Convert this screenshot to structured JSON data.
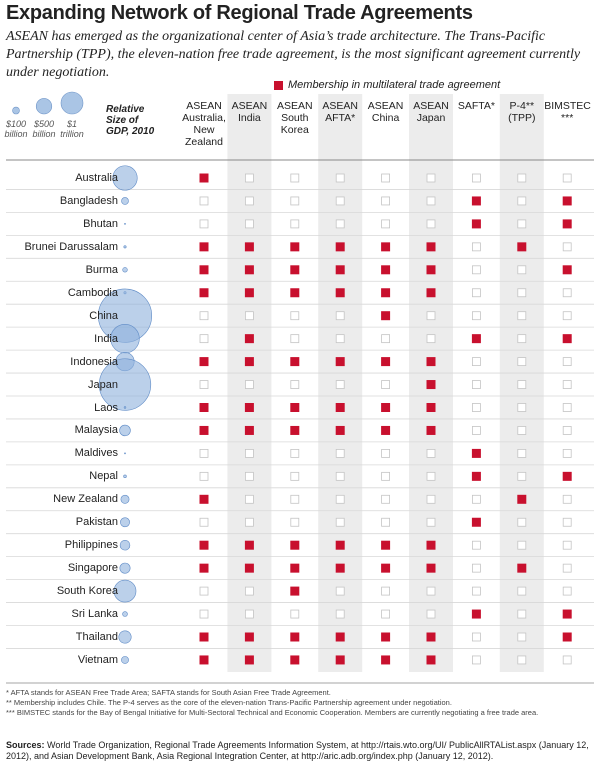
{
  "header": {
    "title": "Expanding Network of Regional Trade Agreements",
    "subtitle": "ASEAN has emerged as the organizational center of Asia’s trade architecture. The Trans-Pacific Partnership (TPP), the eleven-nation free trade agreement, is the most significant agreement currently under negotiation."
  },
  "legend": {
    "membership": "Membership in multilateral trade agreement",
    "member_color": "#c8102e",
    "empty_color": "#c4c4c4"
  },
  "size_legend": {
    "title": "Relative Size of GDP, 2010",
    "sizes": [
      {
        "value": 100,
        "label": "$100 billion"
      },
      {
        "value": 500,
        "label": "$500 billion"
      },
      {
        "value": 1000,
        "label": "$1 trillion"
      }
    ],
    "color": "#8eb1dc"
  },
  "table": {
    "columns": [
      "ASEAN Australia, New Zealand",
      "ASEAN India",
      "ASEAN South Korea",
      "ASEAN AFTA*",
      "ASEAN China",
      "ASEAN Japan",
      "SAFTA*",
      "P-4** (TPP)",
      "BIMSTEC ***"
    ],
    "shaded_columns": [
      1,
      3,
      5,
      7
    ],
    "rows": [
      {
        "country": "Australia",
        "gdp": 1240,
        "members": [
          1,
          0,
          0,
          0,
          0,
          0,
          0,
          0,
          0
        ]
      },
      {
        "country": "Bangladesh",
        "gdp": 100,
        "members": [
          0,
          0,
          0,
          0,
          0,
          0,
          1,
          0,
          1
        ]
      },
      {
        "country": "Bhutan",
        "gdp": 1.5,
        "members": [
          0,
          0,
          0,
          0,
          0,
          0,
          1,
          0,
          1
        ]
      },
      {
        "country": "Brunei Darussalam",
        "gdp": 12,
        "members": [
          1,
          1,
          1,
          1,
          1,
          1,
          0,
          1,
          0
        ]
      },
      {
        "country": "Burma",
        "gdp": 45,
        "members": [
          1,
          1,
          1,
          1,
          1,
          1,
          0,
          0,
          1
        ]
      },
      {
        "country": "Cambodia",
        "gdp": 11,
        "members": [
          1,
          1,
          1,
          1,
          1,
          1,
          0,
          0,
          0
        ]
      },
      {
        "country": "China",
        "gdp": 5900,
        "members": [
          0,
          0,
          0,
          0,
          1,
          0,
          0,
          0,
          0
        ]
      },
      {
        "country": "India",
        "gdp": 1700,
        "members": [
          0,
          1,
          0,
          0,
          0,
          0,
          1,
          0,
          1
        ]
      },
      {
        "country": "Indonesia",
        "gdp": 700,
        "members": [
          1,
          1,
          1,
          1,
          1,
          1,
          0,
          0,
          0
        ]
      },
      {
        "country": "Japan",
        "gdp": 5500,
        "members": [
          0,
          0,
          0,
          0,
          0,
          1,
          0,
          0,
          0
        ]
      },
      {
        "country": "Laos",
        "gdp": 7,
        "members": [
          1,
          1,
          1,
          1,
          1,
          1,
          0,
          0,
          0
        ]
      },
      {
        "country": "Malaysia",
        "gdp": 240,
        "members": [
          1,
          1,
          1,
          1,
          1,
          1,
          0,
          0,
          0
        ]
      },
      {
        "country": "Maldives",
        "gdp": 2,
        "members": [
          0,
          0,
          0,
          0,
          0,
          0,
          1,
          0,
          0
        ]
      },
      {
        "country": "Nepal",
        "gdp": 16,
        "members": [
          0,
          0,
          0,
          0,
          0,
          0,
          1,
          0,
          1
        ]
      },
      {
        "country": "New Zealand",
        "gdp": 140,
        "members": [
          1,
          0,
          0,
          0,
          0,
          0,
          0,
          1,
          0
        ]
      },
      {
        "country": "Pakistan",
        "gdp": 175,
        "members": [
          0,
          0,
          0,
          0,
          0,
          0,
          1,
          0,
          0
        ]
      },
      {
        "country": "Philippines",
        "gdp": 200,
        "members": [
          1,
          1,
          1,
          1,
          1,
          1,
          0,
          0,
          0
        ]
      },
      {
        "country": "Singapore",
        "gdp": 220,
        "members": [
          1,
          1,
          1,
          1,
          1,
          1,
          0,
          1,
          0
        ]
      },
      {
        "country": "South Korea",
        "gdp": 1000,
        "members": [
          0,
          0,
          1,
          0,
          0,
          0,
          0,
          0,
          0
        ]
      },
      {
        "country": "Sri Lanka",
        "gdp": 50,
        "members": [
          0,
          0,
          0,
          0,
          0,
          0,
          1,
          0,
          1
        ]
      },
      {
        "country": "Thailand",
        "gdp": 320,
        "members": [
          1,
          1,
          1,
          1,
          1,
          1,
          0,
          0,
          1
        ]
      },
      {
        "country": "Vietnam",
        "gdp": 105,
        "members": [
          1,
          1,
          1,
          1,
          1,
          1,
          0,
          0,
          0
        ]
      }
    ]
  },
  "footnotes": [
    "* AFTA stands for ASEAN Free Trade Area; SAFTA stands for South Asian Free Trade Agreement.",
    "** Membership includes Chile. The P-4 serves as the core of the eleven-nation Trans-Pacific Partnership agreement under negotiation.",
    "*** BIMSTEC stands for the Bay of Bengal Initiative for Multi-Sectoral Technical and Economic Cooperation. Members are currently negotiating a free trade area."
  ],
  "sources": {
    "label": "Sources:",
    "text": "World Trade Organization, Regional Trade Agreements Information System, at http://rtais.wto.org/UI/ PublicAllRTAList.aspx (January 12, 2012), and Asian Development Bank, Asia Regional Integration Center, at http://aric.adb.org/index.php (January 12, 2012)."
  }
}
